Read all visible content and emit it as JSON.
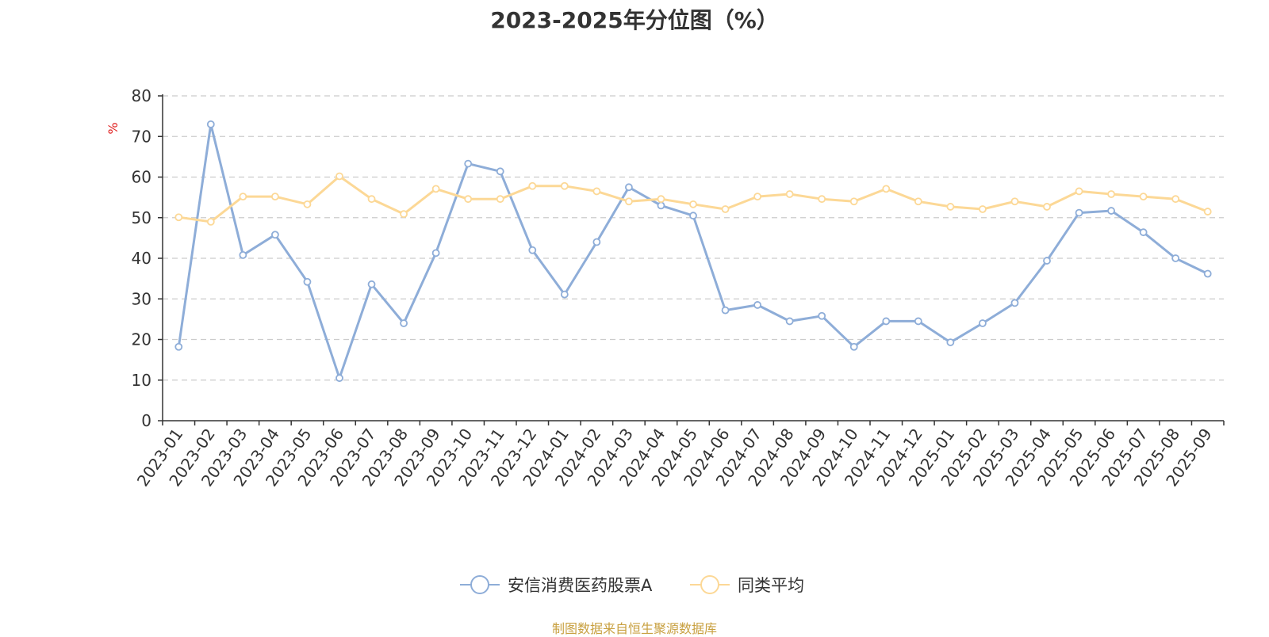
{
  "chart_data": {
    "type": "line",
    "title": "2023-2025年分位图（%）",
    "ylabel": "%",
    "xlabel": "",
    "ylim": [
      0,
      80
    ],
    "yticks": [
      0,
      10,
      20,
      30,
      40,
      50,
      60,
      70,
      80
    ],
    "grid": true,
    "legend_position": "bottom-center",
    "categories": [
      "2023-01",
      "2023-02",
      "2023-03",
      "2023-04",
      "2023-05",
      "2023-06",
      "2023-07",
      "2023-08",
      "2023-09",
      "2023-10",
      "2023-11",
      "2023-12",
      "2024-01",
      "2024-02",
      "2024-03",
      "2024-04",
      "2024-05",
      "2024-06",
      "2024-07",
      "2024-08",
      "2024-09",
      "2024-10",
      "2024-11",
      "2024-12",
      "2025-01",
      "2025-02",
      "2025-03",
      "2025-04",
      "2025-05",
      "2025-06",
      "2025-07",
      "2025-08",
      "2025-09"
    ],
    "series": [
      {
        "name": "安信消费医药股票A",
        "color": "#8eadd8",
        "values": [
          18.2,
          73.0,
          40.8,
          45.8,
          34.2,
          10.5,
          33.6,
          24.0,
          41.3,
          63.3,
          61.4,
          42.0,
          31.1,
          44.0,
          57.5,
          53.0,
          50.5,
          27.2,
          28.5,
          24.5,
          25.8,
          18.2,
          24.5,
          24.5,
          19.3,
          24.0,
          29.0,
          39.4,
          51.2,
          51.7,
          46.4,
          40.0,
          36.2
        ]
      },
      {
        "name": "同类平均",
        "color": "#fcd896",
        "values": [
          50.1,
          49.0,
          55.2,
          55.2,
          53.3,
          60.2,
          54.6,
          50.9,
          57.1,
          54.6,
          54.6,
          57.8,
          57.8,
          56.5,
          54.0,
          54.6,
          53.3,
          52.1,
          55.2,
          55.8,
          54.6,
          54.0,
          57.1,
          54.0,
          52.7,
          52.1,
          54.0,
          52.7,
          56.5,
          55.8,
          55.2,
          54.6,
          51.5
        ]
      }
    ]
  },
  "footer": {
    "source": "制图数据来自恒生聚源数据库"
  },
  "colors": {
    "axis": "#333333",
    "grid": "#cccccc",
    "ylabel": "#e02020",
    "source": "#c8a040"
  }
}
